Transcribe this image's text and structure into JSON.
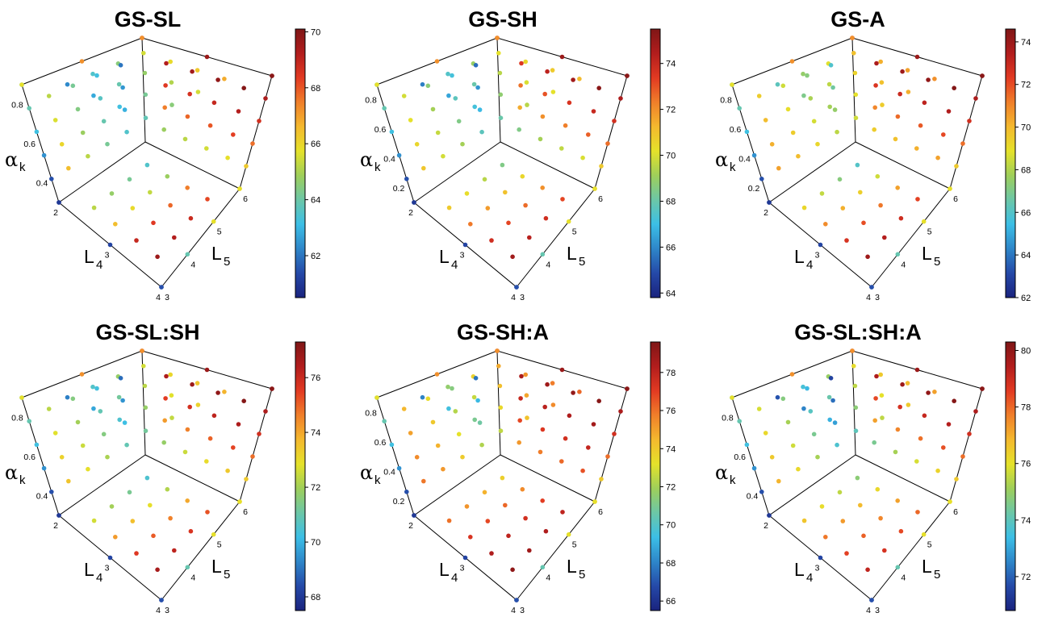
{
  "figure": {
    "axis_labels": {
      "alpha_symbol": "α",
      "alpha_sub": "k",
      "l4": "L",
      "l4_sub": "4",
      "l5": "L",
      "l5_sub": "5"
    },
    "alpha_ticks": [
      "0.4",
      "0.6",
      "0.8"
    ],
    "alpha_ticks_low": [
      "0.2",
      "0.4",
      "0.6",
      "0.8"
    ],
    "l4_ticks": [
      "2",
      "3",
      "4"
    ],
    "l5_ticks": [
      "3",
      "4",
      "5",
      "6"
    ],
    "colormap": [
      "#1a237e",
      "#2549a8",
      "#2e86c9",
      "#3cbfe6",
      "#6cc7a7",
      "#9fcf5a",
      "#e5e22a",
      "#f4b92e",
      "#f07f2a",
      "#e23a22",
      "#b21d1d",
      "#7f1616"
    ]
  },
  "chart_data": [
    {
      "type": "scatter",
      "title": "GS-SL",
      "colorbar": {
        "min": 60.5,
        "max": 70.1,
        "ticks": [
          "62",
          "64",
          "66",
          "68",
          "70"
        ]
      },
      "alpha_ticks_variant": "high",
      "values": {
        "top": [
          [
            64.8,
            67.5,
            68.4,
            69.2
          ],
          [
            65.2,
            67.8,
            68.6,
            69.5
          ],
          [
            65.5,
            68.0,
            68.9,
            69.8
          ],
          [
            65.8,
            68.3,
            69.2,
            70.0
          ]
        ],
        "left": [
          [
            63.8,
            64.5,
            65.5,
            66.8
          ],
          [
            63.2,
            64.2,
            65.1,
            66.3
          ],
          [
            62.8,
            63.9,
            64.7,
            65.9
          ],
          [
            62.3,
            63.5,
            64.5,
            65.5
          ]
        ],
        "right": [
          [
            63.5,
            64.8,
            67.5,
            68.2
          ],
          [
            64.2,
            65.3,
            67.8,
            68.8
          ],
          [
            64.7,
            65.9,
            68.4,
            69.2
          ],
          [
            65.2,
            66.5,
            68.9,
            69.6
          ]
        ]
      }
    },
    {
      "type": "scatter",
      "title": "GS-SH",
      "colorbar": {
        "min": 63.8,
        "max": 75.5,
        "ticks": [
          "64",
          "66",
          "68",
          "70",
          "72",
          "74"
        ]
      },
      "alpha_ticks_variant": "low",
      "values": {
        "top": [
          [
            68.5,
            71.5,
            72.5,
            73.5
          ],
          [
            69.2,
            72.0,
            73.0,
            74.2
          ],
          [
            69.6,
            72.3,
            73.6,
            74.8
          ],
          [
            70.0,
            72.8,
            74.0,
            75.3
          ]
        ],
        "left": [
          [
            68.0,
            69.5,
            70.2,
            71.2
          ],
          [
            67.2,
            68.8,
            70.0,
            70.8
          ],
          [
            66.5,
            68.0,
            69.5,
            70.5
          ],
          [
            65.8,
            67.5,
            69.0,
            70.2
          ]
        ],
        "right": [
          [
            68.5,
            70.5,
            72.0,
            73.2
          ],
          [
            69.5,
            71.0,
            72.6,
            73.8
          ],
          [
            70.3,
            71.8,
            73.2,
            74.3
          ],
          [
            70.8,
            72.4,
            73.8,
            74.8
          ]
        ]
      }
    },
    {
      "type": "scatter",
      "title": "GS-A",
      "colorbar": {
        "min": 62.0,
        "max": 74.6,
        "ticks": [
          "62",
          "64",
          "66",
          "68",
          "70",
          "72",
          "74"
        ]
      },
      "alpha_ticks_variant": "low",
      "values": {
        "top": [
          [
            69.5,
            71.0,
            72.5,
            73.6
          ],
          [
            69.8,
            71.5,
            72.9,
            73.9
          ],
          [
            70.2,
            71.8,
            73.2,
            74.2
          ],
          [
            70.5,
            72.1,
            73.5,
            74.5
          ]
        ],
        "left": [
          [
            68.5,
            69.5,
            70.2,
            70.8
          ],
          [
            67.8,
            68.9,
            69.8,
            70.5
          ],
          [
            67.0,
            68.2,
            69.3,
            70.2
          ],
          [
            66.2,
            67.5,
            68.8,
            69.8
          ]
        ],
        "right": [
          [
            66.0,
            68.5,
            70.5,
            72.2
          ],
          [
            67.2,
            69.4,
            71.3,
            72.8
          ],
          [
            68.3,
            70.2,
            72.0,
            73.4
          ],
          [
            69.2,
            70.9,
            72.6,
            73.9
          ]
        ]
      }
    },
    {
      "type": "scatter",
      "title": "GS-SL:SH",
      "colorbar": {
        "min": 67.5,
        "max": 77.3,
        "ticks": [
          "68",
          "70",
          "72",
          "74",
          "76"
        ]
      },
      "alpha_ticks_variant": "high",
      "values": {
        "top": [
          [
            71.8,
            74.2,
            75.5,
            76.5
          ],
          [
            72.5,
            74.6,
            75.8,
            76.8
          ],
          [
            73.0,
            75.0,
            76.2,
            77.0
          ],
          [
            73.4,
            75.4,
            76.5,
            77.2
          ]
        ],
        "left": [
          [
            71.2,
            72.4,
            73.2,
            73.8
          ],
          [
            70.5,
            71.8,
            72.8,
            73.5
          ],
          [
            69.8,
            71.2,
            72.3,
            73.1
          ],
          [
            69.2,
            70.6,
            71.8,
            72.6
          ]
        ],
        "right": [
          [
            70.5,
            72.2,
            74.0,
            75.2
          ],
          [
            71.3,
            72.9,
            74.6,
            75.7
          ],
          [
            72.0,
            73.6,
            75.1,
            76.2
          ],
          [
            72.6,
            74.2,
            75.6,
            76.6
          ]
        ]
      }
    },
    {
      "type": "scatter",
      "title": "GS-SH:A",
      "colorbar": {
        "min": 65.5,
        "max": 79.6,
        "ticks": [
          "66",
          "68",
          "70",
          "72",
          "74",
          "76",
          "78"
        ]
      },
      "alpha_ticks_variant": "low",
      "values": {
        "top": [
          [
            75.2,
            76.8,
            77.8,
            78.5
          ],
          [
            75.8,
            77.2,
            78.1,
            78.8
          ],
          [
            76.2,
            77.5,
            78.4,
            79.1
          ],
          [
            76.6,
            77.9,
            78.7,
            79.4
          ]
        ],
        "left": [
          [
            72.5,
            74.2,
            75.5,
            76.2
          ],
          [
            71.0,
            73.5,
            74.9,
            75.8
          ],
          [
            69.5,
            72.6,
            74.3,
            75.3
          ],
          [
            68.0,
            71.6,
            73.7,
            74.8
          ]
        ],
        "right": [
          [
            73.8,
            75.5,
            77.0,
            78.0
          ],
          [
            74.6,
            76.2,
            77.5,
            78.4
          ],
          [
            75.3,
            76.8,
            78.0,
            78.8
          ],
          [
            76.0,
            77.3,
            78.4,
            79.2
          ]
        ]
      }
    },
    {
      "type": "scatter",
      "title": "GS-SL:SH:A",
      "colorbar": {
        "min": 70.8,
        "max": 80.3,
        "ticks": [
          "72",
          "74",
          "76",
          "78",
          "80"
        ]
      },
      "alpha_ticks_variant": "high",
      "values": {
        "top": [
          [
            74.5,
            77.2,
            78.4,
            79.5
          ],
          [
            75.2,
            77.6,
            78.8,
            79.8
          ],
          [
            75.8,
            77.9,
            79.1,
            80.0
          ],
          [
            76.3,
            78.3,
            79.4,
            80.2
          ]
        ],
        "left": [
          [
            74.0,
            75.5,
            76.5,
            77.2
          ],
          [
            73.2,
            74.8,
            76.0,
            76.8
          ],
          [
            72.5,
            74.2,
            75.5,
            76.5
          ],
          [
            71.8,
            73.6,
            75.0,
            76.1
          ]
        ],
        "right": [
          [
            74.8,
            76.2,
            77.2,
            78.0
          ],
          [
            75.5,
            76.8,
            77.6,
            78.4
          ],
          [
            76.1,
            77.3,
            78.1,
            78.8
          ],
          [
            76.6,
            77.8,
            78.5,
            79.2
          ]
        ]
      }
    }
  ]
}
